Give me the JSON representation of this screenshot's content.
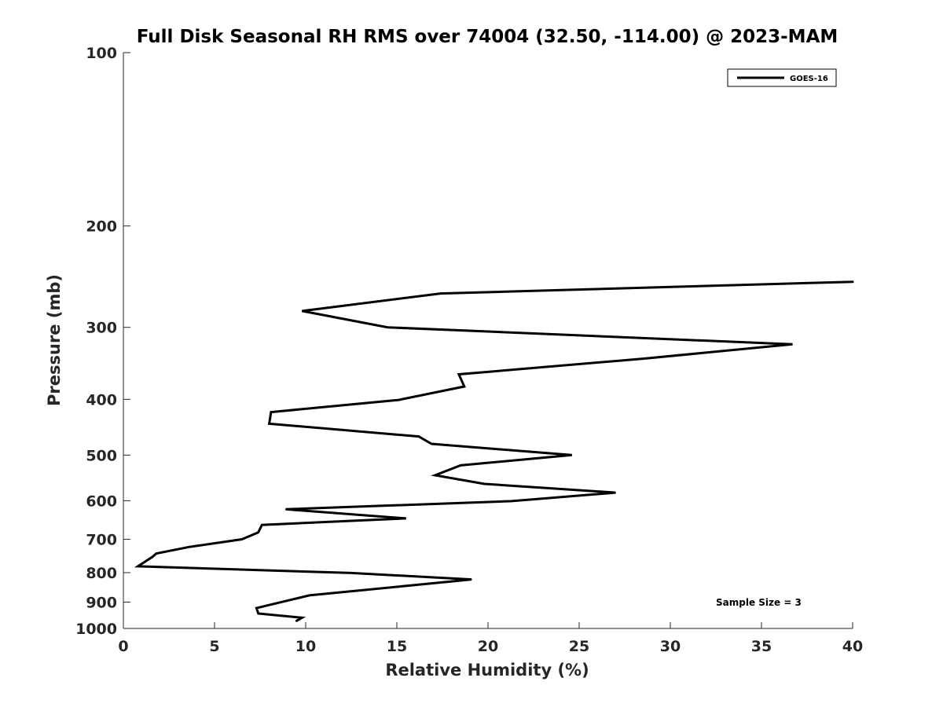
{
  "chart_data": {
    "type": "line",
    "title": "Full Disk Seasonal RH RMS over 74004 (32.50, -114.00) @ 2023-MAM",
    "xlabel": "Relative Humidity (%)",
    "ylabel": "Pressure (mb)",
    "xlim": [
      0,
      40
    ],
    "ylim": [
      100,
      1000
    ],
    "y_scale": "log",
    "y_direction": "reversed",
    "x_ticks": [
      "0",
      "5",
      "10",
      "15",
      "20",
      "25",
      "30",
      "35",
      "40"
    ],
    "y_ticks": [
      "100",
      "200",
      "300",
      "400",
      "500",
      "600",
      "700",
      "800",
      "900",
      "1000"
    ],
    "grid": false,
    "legend_position": "top-right",
    "annotation": "Sample Size = 3",
    "colors": {
      "line": "#000000",
      "axis": "#262626"
    },
    "series": [
      {
        "name": "GOES-16",
        "points": [
          {
            "x": 40.0,
            "y": 250
          },
          {
            "x": 17.4,
            "y": 262
          },
          {
            "x": 9.8,
            "y": 281
          },
          {
            "x": 14.5,
            "y": 300
          },
          {
            "x": 36.7,
            "y": 321
          },
          {
            "x": 28.5,
            "y": 340
          },
          {
            "x": 18.4,
            "y": 362
          },
          {
            "x": 18.7,
            "y": 380
          },
          {
            "x": 15.1,
            "y": 401
          },
          {
            "x": 8.1,
            "y": 421
          },
          {
            "x": 8.0,
            "y": 441
          },
          {
            "x": 16.2,
            "y": 464
          },
          {
            "x": 16.9,
            "y": 478
          },
          {
            "x": 24.6,
            "y": 500
          },
          {
            "x": 18.5,
            "y": 521
          },
          {
            "x": 17.1,
            "y": 542
          },
          {
            "x": 19.8,
            "y": 561
          },
          {
            "x": 27.0,
            "y": 581
          },
          {
            "x": 21.3,
            "y": 601
          },
          {
            "x": 8.9,
            "y": 621
          },
          {
            "x": 15.5,
            "y": 644
          },
          {
            "x": 7.6,
            "y": 661
          },
          {
            "x": 7.4,
            "y": 681
          },
          {
            "x": 6.5,
            "y": 700
          },
          {
            "x": 3.6,
            "y": 722
          },
          {
            "x": 1.8,
            "y": 741
          },
          {
            "x": 1.6,
            "y": 751
          },
          {
            "x": 0.8,
            "y": 780
          },
          {
            "x": 12.5,
            "y": 801
          },
          {
            "x": 19.1,
            "y": 822
          },
          {
            "x": 15.6,
            "y": 843
          },
          {
            "x": 10.2,
            "y": 876
          },
          {
            "x": 8.6,
            "y": 901
          },
          {
            "x": 7.3,
            "y": 922
          },
          {
            "x": 7.4,
            "y": 942
          },
          {
            "x": 9.8,
            "y": 958
          },
          {
            "x": 9.5,
            "y": 970
          }
        ]
      }
    ]
  }
}
